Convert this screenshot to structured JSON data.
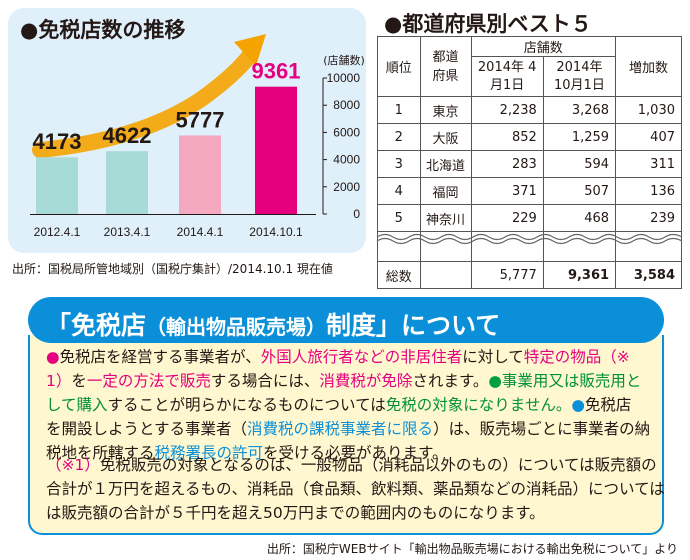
{
  "chart_title": "●免税店数の推移",
  "chart_data": {
    "type": "bar",
    "categories": [
      "2012.4.1",
      "2013.4.1",
      "2014.4.1",
      "2014.10.1"
    ],
    "values": [
      4173,
      4622,
      5777,
      9361
    ],
    "value_labels": [
      "4173",
      "4622",
      "5777",
      "9361"
    ],
    "colors": [
      "#a6dbd8",
      "#a6dbd8",
      "#f4a9c1",
      "#e4007f"
    ],
    "label_colors": [
      "#231815",
      "#231815",
      "#231815",
      "#e4007f"
    ],
    "ylabel": "(店舗数)",
    "ylim": [
      0,
      10000
    ],
    "yticks": [
      "0",
      "2000",
      "4000",
      "6000",
      "8000",
      "10000"
    ],
    "tick_values": [
      0,
      2000,
      4000,
      6000,
      8000,
      10000
    ],
    "trend_arrow_color": "#f5a300"
  },
  "source_top": "出所：国税局所管地域別（国税庁集計）/2014.10.1 現在値",
  "table": {
    "title": "●都道府県別ベスト５",
    "headers": {
      "rank": "順位",
      "prefecture": "都道府県",
      "stores": "店舗数",
      "date1": "2014年 4月1日",
      "date2": "2014年 10月1日",
      "increase": "増加数"
    },
    "rows": [
      {
        "rank": "1",
        "pref": "東京",
        "v1": "2,238",
        "v2": "3,268",
        "inc": "1,030"
      },
      {
        "rank": "2",
        "pref": "大阪",
        "v1": "852",
        "v2": "1,259",
        "inc": "407"
      },
      {
        "rank": "3",
        "pref": "北海道",
        "v1": "283",
        "v2": "594",
        "inc": "311"
      },
      {
        "rank": "4",
        "pref": "福岡",
        "v1": "371",
        "v2": "507",
        "inc": "136"
      },
      {
        "rank": "5",
        "pref": "神奈川",
        "v1": "229",
        "v2": "468",
        "inc": "239"
      }
    ],
    "total": {
      "label": "総数",
      "v1": "5,777",
      "v2": "9,361",
      "inc": "3,584"
    }
  },
  "section": {
    "title_main": "「免税店",
    "title_paren": "（輸出物品販売場）",
    "title_end": "制度」について",
    "p1": {
      "b1": "●",
      "t1": "免税店を経営する事業者が、",
      "t2": "外国人旅行者などの非居住者",
      "t3": "に対して",
      "t4": "特定の物品（※",
      "t5": "1）",
      "t6": "を",
      "t7": "一定の方法で販売",
      "t8": "する場合には、",
      "t9": "消費税が免除",
      "t10": "されます。",
      "b2": "●",
      "t11": "事業用又は販売用と",
      "t12": "して購入",
      "t13": "することが明らかになるものについては",
      "t14": "免税の対象になりません。",
      "b3": "●",
      "t15": "免税店",
      "t16": "を開設しようとする事業者（",
      "t17": "消費税の課税事業者に限る",
      "t18": "）は、販売場ごとに事業者の納",
      "t19": "税地を所轄する",
      "t20": "税務署長の許可",
      "t21": "を受ける必要があります。"
    },
    "p2": {
      "n1": "（※1）",
      "l1": "免税販売の対象となるのは、一般物品（消耗品以外のもの）については販売額の",
      "l2": "合計が１万円を超えるもの、消耗品（食品類、飲料類、薬品類などの消耗品）については",
      "l3": "は販売額の合計が５千円を超え50万円までの範囲内のものになります。"
    }
  },
  "source_bottom": "出所：国税庁WEBサイト「輸出物品販売場における輸出免税について」より"
}
